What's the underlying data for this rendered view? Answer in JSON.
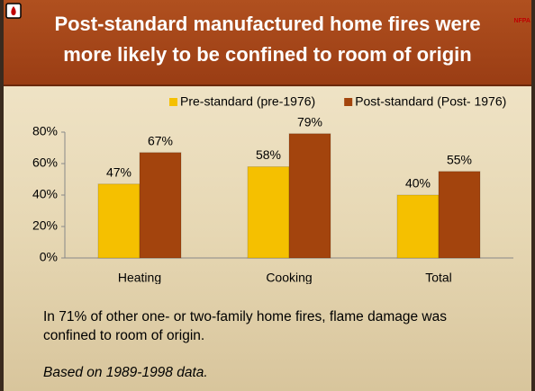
{
  "logo": "NFPA",
  "chart_data": {
    "type": "bar",
    "title": [
      "Post-standard manufactured home fires were",
      "more likely to be confined to room of origin"
    ],
    "categories": [
      "Heating",
      "Cooking",
      "Total"
    ],
    "series": [
      {
        "name": "Pre-standard (pre-1976)",
        "color": "#f5c000",
        "values": [
          47,
          58,
          40
        ],
        "value_labels": [
          "47%",
          "58%",
          "40%"
        ]
      },
      {
        "name": "Post-standard (Post- 1976)",
        "color": "#a3440d",
        "values": [
          67,
          79,
          55
        ],
        "value_labels": [
          "67%",
          "79%",
          "55%"
        ]
      }
    ],
    "ylim": [
      0,
      80
    ],
    "yticks": [
      {
        "value": 0,
        "label": "0%"
      },
      {
        "value": 20,
        "label": "20%"
      },
      {
        "value": 40,
        "label": "40%"
      },
      {
        "value": 60,
        "label": "60%"
      },
      {
        "value": 80,
        "label": "80%"
      }
    ],
    "legend": "top",
    "notes": [
      "In 71% of other one- or two-family home fires, flame damage was confined to room of origin.",
      "Based on 1989-1998 data."
    ]
  }
}
